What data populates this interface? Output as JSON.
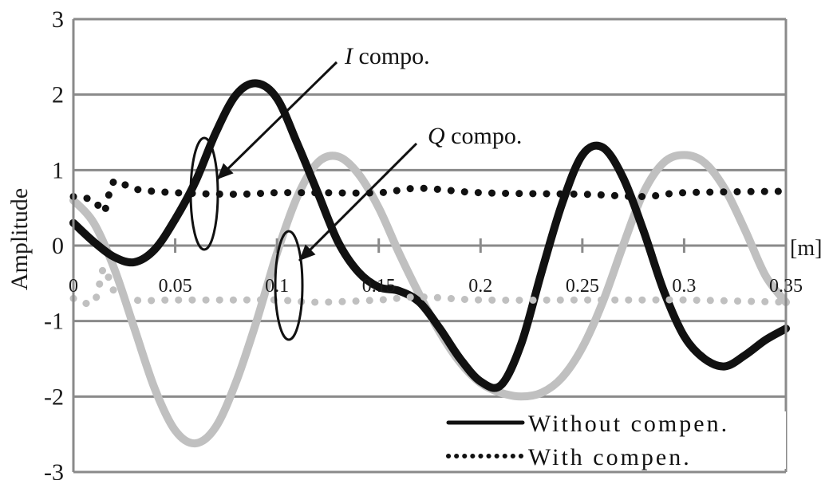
{
  "chart_data": {
    "type": "line",
    "xlabel": "",
    "x_unit": "[m]",
    "ylabel": "Amplitude",
    "xlim": [
      0,
      0.35
    ],
    "ylim": [
      -3,
      3
    ],
    "x_ticks": [
      "0",
      "0.05",
      "0.1",
      "0.15",
      "0.2",
      "0.25",
      "0.3",
      "0.35"
    ],
    "y_ticks": [
      "3",
      "2",
      "1",
      "0",
      "-1",
      "-2",
      "-3"
    ],
    "grid": "horizontal",
    "legend_position": "bottom-right",
    "legend": [
      {
        "label": "Without compen.",
        "style": "solid"
      },
      {
        "label": "With compen.",
        "style": "dotted"
      }
    ],
    "annotations": [
      {
        "italic": "I",
        "text": " compo.",
        "target": "I component (black)"
      },
      {
        "italic": "Q",
        "text": " compo.",
        "target": "Q component (gray)"
      }
    ],
    "series": [
      {
        "name": "I compo.",
        "legend_group": "Without compen.",
        "color": "#111111",
        "style": "solid",
        "x": [
          0,
          0.01,
          0.02,
          0.03,
          0.04,
          0.05,
          0.06,
          0.07,
          0.08,
          0.09,
          0.1,
          0.11,
          0.12,
          0.13,
          0.14,
          0.15,
          0.16,
          0.17,
          0.18,
          0.19,
          0.2,
          0.21,
          0.22,
          0.23,
          0.24,
          0.25,
          0.26,
          0.27,
          0.28,
          0.29,
          0.3,
          0.31,
          0.32,
          0.33,
          0.34,
          0.35
        ],
        "y": [
          0.3,
          0.05,
          -0.15,
          -0.22,
          -0.05,
          0.35,
          0.85,
          1.5,
          2.0,
          2.15,
          1.95,
          1.35,
          0.7,
          0.05,
          -0.35,
          -0.55,
          -0.6,
          -0.75,
          -1.1,
          -1.5,
          -1.8,
          -1.85,
          -1.3,
          -0.35,
          0.55,
          1.2,
          1.3,
          0.9,
          0.2,
          -0.6,
          -1.2,
          -1.5,
          -1.6,
          -1.45,
          -1.25,
          -1.1
        ]
      },
      {
        "name": "Q compo.",
        "legend_group": "Without compen.",
        "color": "#c0c0c0",
        "style": "solid",
        "x": [
          0,
          0.01,
          0.02,
          0.03,
          0.04,
          0.05,
          0.06,
          0.07,
          0.08,
          0.09,
          0.1,
          0.11,
          0.12,
          0.13,
          0.14,
          0.15,
          0.16,
          0.17,
          0.18,
          0.19,
          0.2,
          0.21,
          0.22,
          0.23,
          0.24,
          0.25,
          0.26,
          0.27,
          0.28,
          0.29,
          0.3,
          0.31,
          0.32,
          0.33,
          0.34,
          0.35
        ],
        "y": [
          0.6,
          0.3,
          -0.3,
          -1.1,
          -1.9,
          -2.45,
          -2.62,
          -2.4,
          -1.8,
          -1.0,
          -0.1,
          0.65,
          1.1,
          1.18,
          0.95,
          0.5,
          -0.1,
          -0.65,
          -1.15,
          -1.55,
          -1.82,
          -1.95,
          -2.0,
          -1.95,
          -1.75,
          -1.35,
          -0.75,
          0.0,
          0.7,
          1.1,
          1.2,
          1.1,
          0.75,
          0.2,
          -0.4,
          -0.75
        ]
      },
      {
        "name": "I compo. (with compen.)",
        "legend_group": "With compen.",
        "color": "#111111",
        "style": "dotted",
        "x": [
          0,
          0.01,
          0.015,
          0.02,
          0.03,
          0.05,
          0.08,
          0.1,
          0.12,
          0.15,
          0.17,
          0.2,
          0.25,
          0.28,
          0.3,
          0.35
        ],
        "y": [
          0.65,
          0.6,
          0.45,
          0.85,
          0.75,
          0.7,
          0.68,
          0.7,
          0.7,
          0.7,
          0.76,
          0.7,
          0.68,
          0.65,
          0.7,
          0.72
        ]
      },
      {
        "name": "Q compo. (with compen.)",
        "legend_group": "With compen.",
        "color": "#c0c0c0",
        "style": "dotted",
        "x": [
          0,
          0.01,
          0.015,
          0.02,
          0.03,
          0.05,
          0.08,
          0.1,
          0.12,
          0.15,
          0.17,
          0.2,
          0.25,
          0.28,
          0.3,
          0.35
        ],
        "y": [
          -0.7,
          -0.75,
          -0.3,
          -0.6,
          -0.72,
          -0.72,
          -0.72,
          -0.72,
          -0.75,
          -0.72,
          -0.68,
          -0.72,
          -0.72,
          -0.72,
          -0.72,
          -0.75
        ]
      }
    ]
  }
}
